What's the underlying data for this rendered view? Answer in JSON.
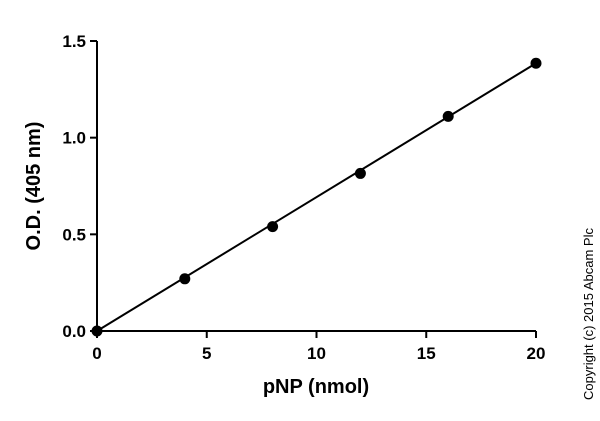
{
  "chart_data": {
    "type": "scatter",
    "xlabel": "pNP (nmol)",
    "ylabel": "O.D. (405 nm)",
    "xlim": [
      0,
      20
    ],
    "ylim": [
      0,
      1.5
    ],
    "x_ticks": [
      "0",
      "5",
      "10",
      "15",
      "20"
    ],
    "y_ticks": [
      "0.0",
      "0.5",
      "1.0",
      "1.5"
    ],
    "grid": false,
    "series": [
      {
        "x": [
          0,
          4,
          8,
          12,
          16,
          20
        ],
        "y": [
          0.0,
          0.27,
          0.54,
          0.815,
          1.11,
          1.385
        ]
      }
    ],
    "fit_line": {
      "x": [
        0,
        20
      ],
      "y": [
        0.0,
        1.385
      ]
    },
    "colors": {
      "points": "#000000",
      "line": "#000000",
      "axes": "#000000"
    }
  },
  "copyright": "Copyright (c) 2015 Abcam Plc"
}
